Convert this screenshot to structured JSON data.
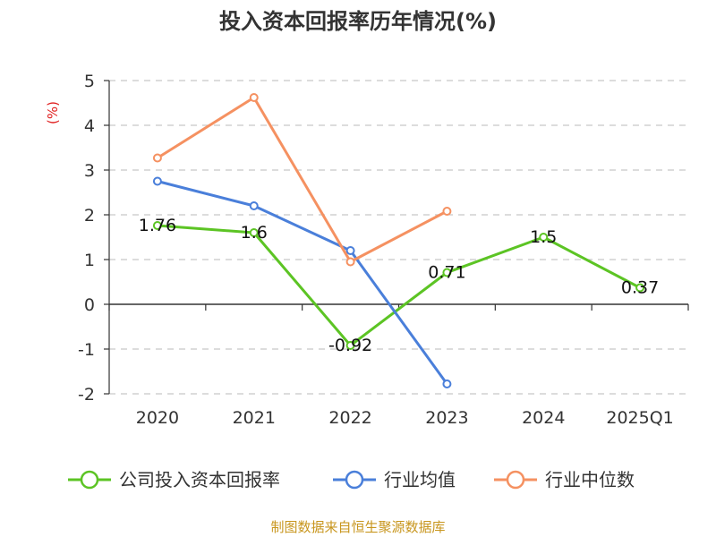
{
  "chart_data": {
    "type": "line",
    "title": "投入资本回报率历年情况(%)",
    "ylabel": "(%)",
    "xlabel": "",
    "categories": [
      "2020",
      "2021",
      "2022",
      "2023",
      "2024",
      "2025Q1"
    ],
    "ylim": [
      -2,
      5
    ],
    "yticks": [
      5,
      4,
      3,
      2,
      1,
      0,
      -1,
      -2
    ],
    "grid": true,
    "legend": "bottom",
    "series": [
      {
        "name": "公司投入资本回报率",
        "color": "#5cc424",
        "values": [
          1.76,
          1.6,
          -0.92,
          0.71,
          1.5,
          0.37
        ],
        "labels": [
          "1.76",
          "1.6",
          "-0.92",
          "0.71",
          "1.5",
          "0.37"
        ]
      },
      {
        "name": "行业均值",
        "color": "#4a7fda",
        "values": [
          2.75,
          2.2,
          1.2,
          -1.78,
          null,
          null
        ]
      },
      {
        "name": "行业中位数",
        "color": "#f59161",
        "values": [
          3.27,
          4.62,
          0.95,
          2.08,
          null,
          null
        ]
      }
    ]
  },
  "source": "制图数据来自恒生聚源数据库"
}
